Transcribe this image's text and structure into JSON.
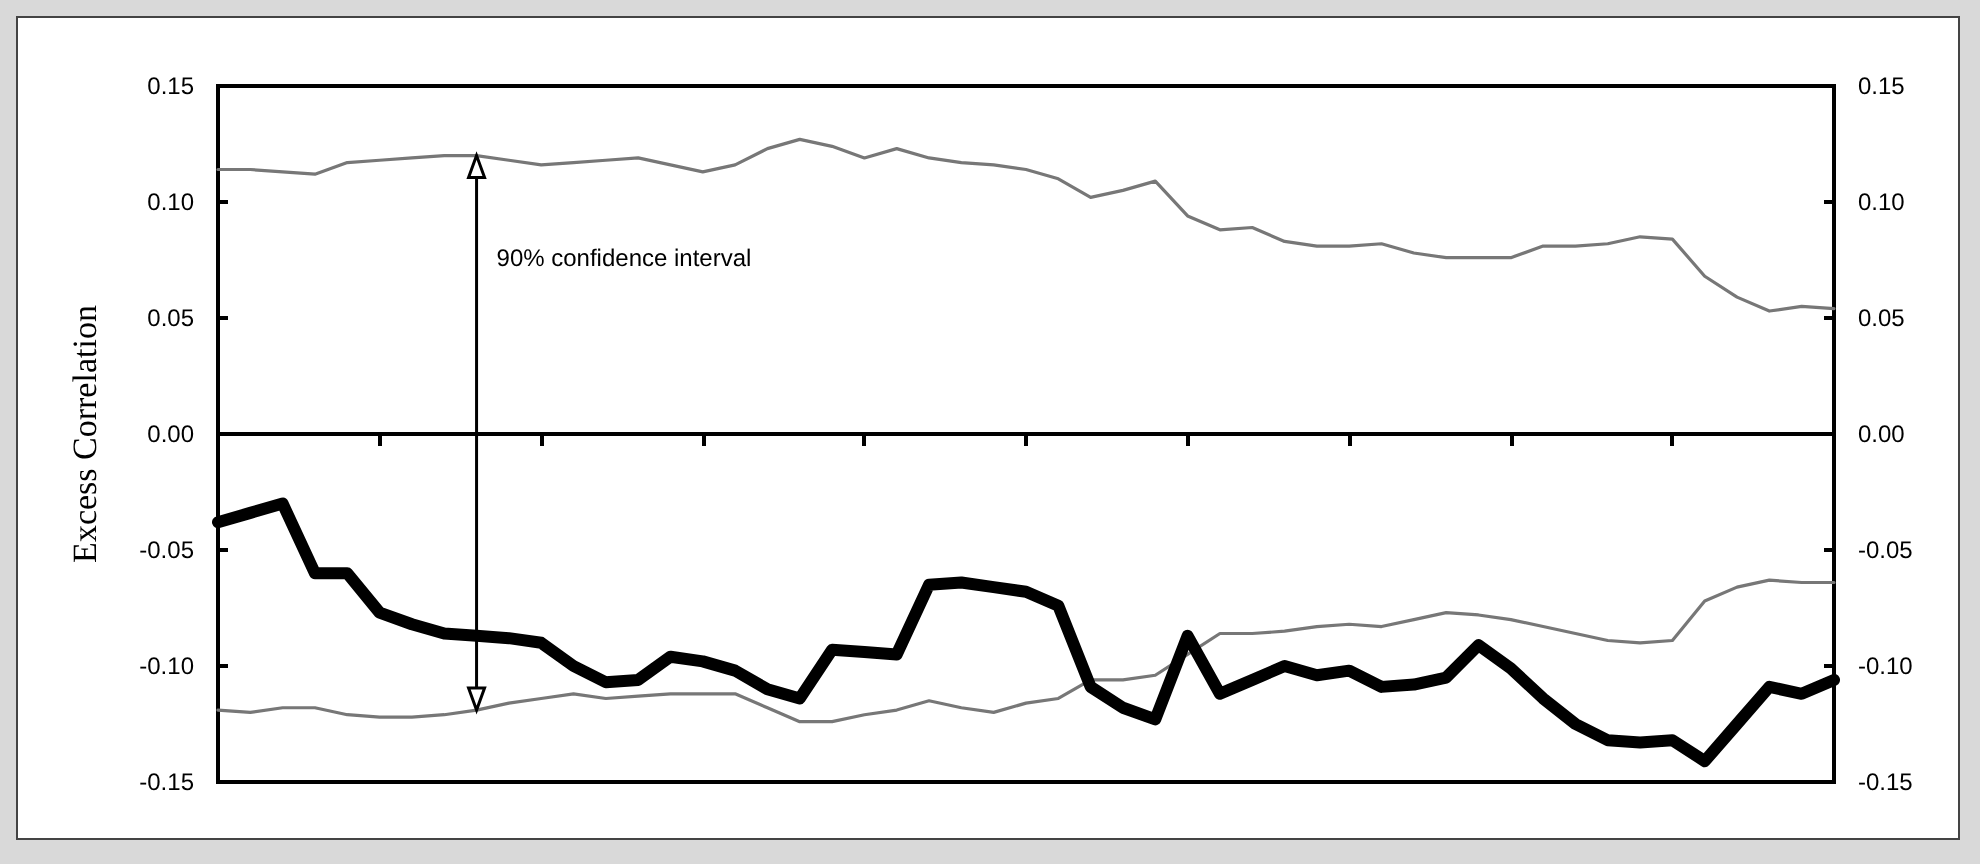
{
  "chart_data": {
    "type": "line",
    "ylabel": "Excess Correlation",
    "marker": "none",
    "annotations": [
      "90% confidence interval"
    ],
    "categories": [
      null,
      null,
      null,
      null,
      null,
      null,
      null,
      null,
      null,
      null,
      null,
      null,
      null,
      null,
      null,
      null,
      null,
      null,
      null,
      null,
      null,
      null,
      null,
      null,
      null,
      null,
      null,
      null,
      null,
      null,
      null,
      null,
      null,
      null,
      null,
      null,
      null,
      null,
      null,
      null,
      null,
      null,
      null,
      null,
      null,
      null,
      null,
      null,
      null,
      null,
      null
    ],
    "ylim": [
      -0.15,
      0.15
    ],
    "yticks": [
      {
        "value": -0.15,
        "label": "-0.15"
      },
      {
        "value": -0.1,
        "label": "-0.10"
      },
      {
        "value": -0.05,
        "label": "-0.05"
      },
      {
        "value": 0,
        "label": "0.00"
      },
      {
        "value": 0.05,
        "label": "0.05"
      },
      {
        "value": 0.1,
        "label": "0.10"
      },
      {
        "value": 0.15,
        "label": "0.15"
      }
    ],
    "y2lim": [
      -0.15,
      0.15
    ],
    "y2ticks": [
      {
        "value": -0.15,
        "label": "-0.15"
      },
      {
        "value": -0.1,
        "label": "-0.10"
      },
      {
        "value": -0.05,
        "label": "-0.05"
      },
      {
        "value": 0,
        "label": "0.00"
      },
      {
        "value": 0.05,
        "label": "0.05"
      },
      {
        "value": 0.1,
        "label": "0.10"
      },
      {
        "value": 0.15,
        "label": "0.15"
      }
    ],
    "series": [
      {
        "color": "#777777",
        "values": [
          0.114,
          0.114,
          0.113,
          0.112,
          0.117,
          0.118,
          0.119,
          0.12,
          0.12,
          0.118,
          0.116,
          0.117,
          0.118,
          0.119,
          0.116,
          0.113,
          0.116,
          0.123,
          0.127,
          0.124,
          0.119,
          0.123,
          0.119,
          0.117,
          0.116,
          0.114,
          0.11,
          0.102,
          0.105,
          0.109,
          0.094,
          0.088,
          0.089,
          0.083,
          0.081,
          0.081,
          0.082,
          0.078,
          0.076,
          0.076,
          0.076,
          0.081,
          0.081,
          0.082,
          0.085,
          0.084,
          0.068,
          0.059,
          0.053,
          0.055,
          0.054
        ]
      },
      {
        "color": "#777777",
        "values": [
          -0.119,
          -0.12,
          -0.118,
          -0.118,
          -0.121,
          -0.122,
          -0.122,
          -0.121,
          -0.119,
          -0.116,
          -0.114,
          -0.112,
          -0.114,
          -0.113,
          -0.112,
          -0.112,
          -0.112,
          -0.118,
          -0.124,
          -0.124,
          -0.121,
          -0.119,
          -0.115,
          -0.118,
          -0.12,
          -0.116,
          -0.114,
          -0.106,
          -0.106,
          -0.104,
          -0.095,
          -0.086,
          -0.086,
          -0.085,
          -0.083,
          -0.082,
          -0.083,
          -0.08,
          -0.077,
          -0.078,
          -0.08,
          -0.083,
          -0.086,
          -0.089,
          -0.09,
          -0.089,
          -0.072,
          -0.066,
          -0.063,
          -0.064,
          -0.064
        ]
      },
      {
        "color": "#000000",
        "values": [
          -0.038,
          -0.034,
          -0.03,
          -0.06,
          -0.06,
          -0.077,
          -0.082,
          -0.086,
          -0.087,
          -0.088,
          -0.09,
          -0.1,
          -0.107,
          -0.106,
          -0.096,
          -0.098,
          -0.102,
          -0.11,
          -0.114,
          -0.093,
          -0.094,
          -0.095,
          -0.065,
          -0.064,
          -0.066,
          -0.068,
          -0.074,
          -0.109,
          -0.118,
          -0.123,
          -0.087,
          -0.112,
          -0.106,
          -0.1,
          -0.104,
          -0.102,
          -0.109,
          -0.108,
          -0.105,
          -0.091,
          -0.101,
          -0.114,
          -0.125,
          -0.132,
          -0.133,
          -0.132,
          -0.141,
          -0.125,
          -0.109,
          -0.112,
          -0.106
        ]
      }
    ]
  }
}
